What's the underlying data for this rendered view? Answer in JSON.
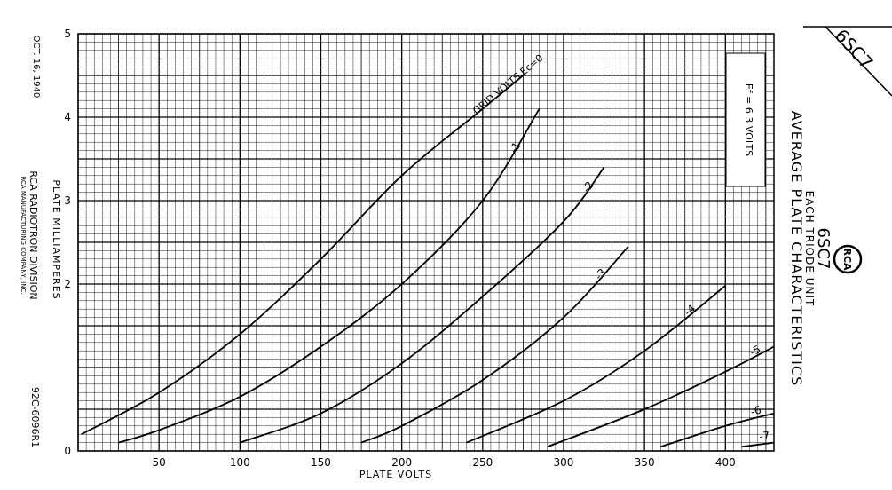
{
  "sheet": {
    "tube_tag": "6SC7",
    "date": "OCT. 16, 1940",
    "company_1": "RCA RADIOTRON DIVISION",
    "company_2": "RCA MANUFACTURING COMPANY, INC.",
    "drawing_no": "92C-6096R1",
    "logo_text": "RCA",
    "title_1": "AVERAGE PLATE CHARACTERISTICS",
    "title_2": "EACH TRIODE UNIT",
    "title_3": "6SC7",
    "filament": "Ef = 6.3 VOLTS"
  },
  "chart_data": {
    "type": "line",
    "title": "AVERAGE PLATE CHARACTERISTICS",
    "subtitle": "EACH TRIODE UNIT",
    "xlabel": "PLATE VOLTS",
    "ylabel": "PLATE MILLIAMPERES",
    "xlim": [
      0,
      430
    ],
    "ylim": [
      0,
      5
    ],
    "x_ticks": [
      50,
      100,
      150,
      200,
      250,
      300,
      350,
      400
    ],
    "y_ticks": [
      0,
      2,
      3,
      4,
      5
    ],
    "grid": true,
    "series": [
      {
        "name": "GRID VOLTS Ec=0",
        "label": "GRID VOLTS Ec=0",
        "points": [
          [
            2,
            0.2
          ],
          [
            50,
            0.7
          ],
          [
            100,
            1.4
          ],
          [
            150,
            2.3
          ],
          [
            200,
            3.3
          ],
          [
            250,
            4.1
          ],
          [
            275,
            4.5
          ]
        ]
      },
      {
        "name": "-1",
        "label": "-1",
        "points": [
          [
            25,
            0.1
          ],
          [
            50,
            0.25
          ],
          [
            100,
            0.65
          ],
          [
            150,
            1.25
          ],
          [
            200,
            2.0
          ],
          [
            250,
            3.0
          ],
          [
            285,
            4.1
          ]
        ]
      },
      {
        "name": "-2",
        "label": "-2",
        "points": [
          [
            100,
            0.1
          ],
          [
            150,
            0.45
          ],
          [
            200,
            1.05
          ],
          [
            250,
            1.85
          ],
          [
            300,
            2.75
          ],
          [
            325,
            3.4
          ]
        ]
      },
      {
        "name": "-3",
        "label": "-3",
        "points": [
          [
            175,
            0.1
          ],
          [
            200,
            0.3
          ],
          [
            250,
            0.85
          ],
          [
            300,
            1.6
          ],
          [
            340,
            2.45
          ]
        ]
      },
      {
        "name": "-4",
        "label": "-4",
        "points": [
          [
            240,
            0.1
          ],
          [
            300,
            0.6
          ],
          [
            350,
            1.2
          ],
          [
            400,
            1.98
          ]
        ]
      },
      {
        "name": "-5",
        "label": "-5",
        "points": [
          [
            290,
            0.05
          ],
          [
            350,
            0.5
          ],
          [
            400,
            0.95
          ],
          [
            430,
            1.25
          ]
        ]
      },
      {
        "name": "-6",
        "label": "-6",
        "points": [
          [
            360,
            0.05
          ],
          [
            400,
            0.3
          ],
          [
            430,
            0.45
          ]
        ]
      },
      {
        "name": "-7",
        "label": "-7",
        "points": [
          [
            410,
            0.05
          ],
          [
            430,
            0.1
          ]
        ]
      }
    ]
  }
}
